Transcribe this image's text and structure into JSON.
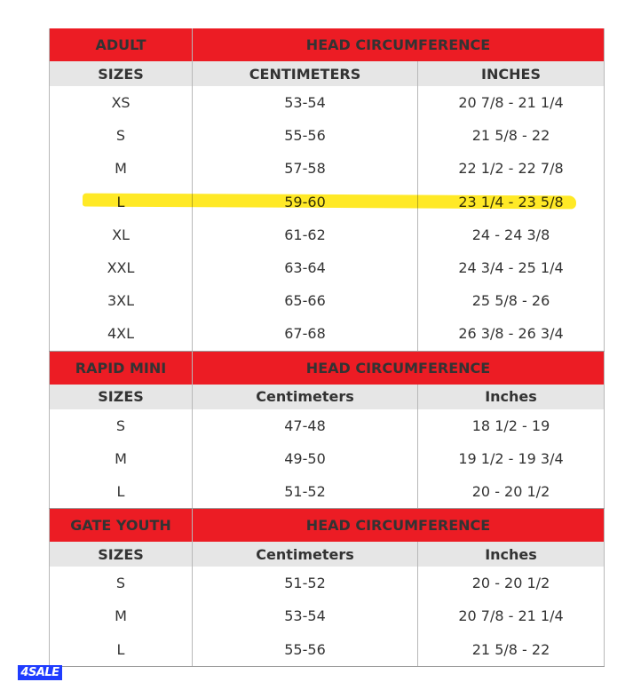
{
  "sections": [
    {
      "title": "ADULT",
      "group": "HEAD CIRCUMFERENCE",
      "headers": [
        "SIZES",
        "CENTIMETERS",
        "INCHES"
      ],
      "rows": [
        [
          "XS",
          "53-54",
          "20 7/8 - 21 1/4"
        ],
        [
          "S",
          "55-56",
          "21 5/8 - 22"
        ],
        [
          "M",
          "57-58",
          "22 1/2 - 22 7/8"
        ],
        [
          "L",
          "59-60",
          "23 1/4 - 23 5/8"
        ],
        [
          "XL",
          "61-62",
          "24 - 24 3/8"
        ],
        [
          "XXL",
          "63-64",
          "24 3/4 - 25 1/4"
        ],
        [
          "3XL",
          "65-66",
          "25 5/8 - 26"
        ],
        [
          "4XL",
          "67-68",
          "26 3/8 - 26 3/4"
        ]
      ]
    },
    {
      "title": "RAPID MINI",
      "group": "HEAD CIRCUMFERENCE",
      "headers": [
        "SIZES",
        "Centimeters",
        "Inches"
      ],
      "rows": [
        [
          "S",
          "47-48",
          "18 1/2 - 19"
        ],
        [
          "M",
          "49-50",
          "19 1/2 - 19 3/4"
        ],
        [
          "L",
          "51-52",
          "20 - 20 1/2"
        ]
      ]
    },
    {
      "title": "GATE YOUTH",
      "group": "HEAD CIRCUMFERENCE",
      "headers": [
        "SIZES",
        "Centimeters",
        "Inches"
      ],
      "rows": [
        [
          "S",
          "51-52",
          "20 - 20 1/2"
        ],
        [
          "M",
          "53-54",
          "20 7/8 - 21 1/4"
        ],
        [
          "L",
          "55-56",
          "21 5/8 - 22"
        ]
      ]
    }
  ],
  "highlighted_row": "L",
  "highlight_color": "#ffe600",
  "header_color": "#ec1c24",
  "watermark": "4SALE"
}
